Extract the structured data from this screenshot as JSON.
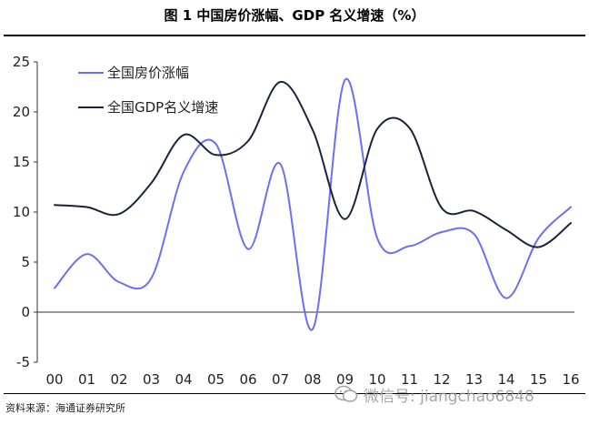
{
  "header": {
    "title": "图 1    中国房价涨幅、GDP 名义增速（%）"
  },
  "footer": {
    "source": "资料来源：海通证券研究所",
    "watermark": "微信号: jiangchao6848"
  },
  "colors": {
    "series_house": "#6b6ff2",
    "series_gdp": "#18243a"
  },
  "chart_data": {
    "type": "line",
    "title": "中国房价涨幅、GDP 名义增速（%）",
    "xlabel": "",
    "ylabel": "",
    "categories": [
      "00",
      "01",
      "02",
      "03",
      "04",
      "05",
      "06",
      "07",
      "08",
      "09",
      "10",
      "11",
      "12",
      "13",
      "14",
      "15",
      "16"
    ],
    "x": [
      0,
      1,
      2,
      3,
      4,
      5,
      6,
      7,
      8,
      9,
      10,
      11,
      12,
      13,
      14,
      15,
      16
    ],
    "ylim": [
      -5,
      25
    ],
    "yticks": [
      -5,
      0,
      5,
      10,
      15,
      20,
      25
    ],
    "grid": false,
    "legend_position": "top-left",
    "series": [
      {
        "name": "全国房价涨幅",
        "color": "#6b6ff2",
        "values": [
          2.4,
          5.8,
          3.0,
          3.4,
          14.0,
          16.8,
          6.3,
          14.8,
          -1.7,
          23.2,
          7.4,
          6.6,
          8.0,
          7.8,
          1.4,
          7.4,
          10.5
        ]
      },
      {
        "name": "全国GDP名义增速",
        "color": "#18243a",
        "values": [
          10.7,
          10.5,
          9.8,
          12.9,
          17.7,
          15.7,
          17.1,
          23.0,
          18.2,
          9.3,
          18.3,
          18.4,
          10.4,
          10.1,
          8.2,
          6.5,
          8.9
        ]
      }
    ]
  }
}
